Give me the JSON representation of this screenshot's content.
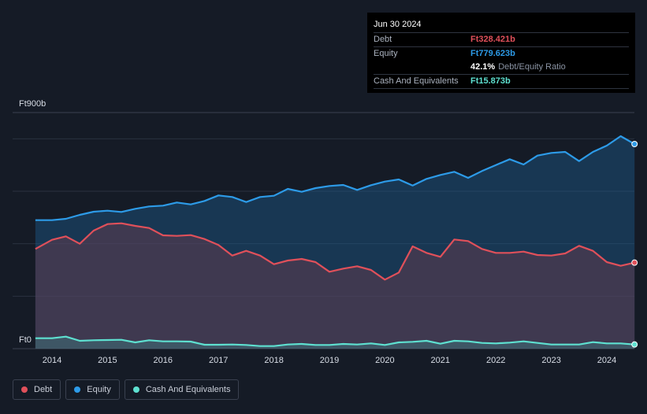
{
  "chart_data": {
    "type": "area",
    "currency_prefix": "Ft",
    "y_unit": "b",
    "ylim": [
      0,
      900
    ],
    "y_tick_labels": [
      "Ft0",
      "Ft900b"
    ],
    "x_tick_labels": [
      "2014",
      "2015",
      "2016",
      "2017",
      "2018",
      "2019",
      "2020",
      "2021",
      "2022",
      "2023",
      "2024"
    ],
    "xlim": [
      2013.7,
      2024.5
    ],
    "series": [
      {
        "name": "Equity",
        "color": "#2d9be8",
        "points": [
          [
            2013.7,
            490
          ],
          [
            2014.0,
            490
          ],
          [
            2014.25,
            495
          ],
          [
            2014.5,
            510
          ],
          [
            2014.75,
            522
          ],
          [
            2015.0,
            526
          ],
          [
            2015.25,
            521
          ],
          [
            2015.5,
            533
          ],
          [
            2015.75,
            542
          ],
          [
            2016.0,
            545
          ],
          [
            2016.25,
            557
          ],
          [
            2016.5,
            550
          ],
          [
            2016.75,
            563
          ],
          [
            2017.0,
            584
          ],
          [
            2017.25,
            578
          ],
          [
            2017.5,
            559
          ],
          [
            2017.75,
            578
          ],
          [
            2018.0,
            583
          ],
          [
            2018.25,
            609
          ],
          [
            2018.5,
            598
          ],
          [
            2018.75,
            612
          ],
          [
            2019.0,
            620
          ],
          [
            2019.25,
            624
          ],
          [
            2019.5,
            605
          ],
          [
            2019.75,
            623
          ],
          [
            2020.0,
            637
          ],
          [
            2020.25,
            645
          ],
          [
            2020.5,
            622
          ],
          [
            2020.75,
            647
          ],
          [
            2021.0,
            662
          ],
          [
            2021.25,
            674
          ],
          [
            2021.5,
            651
          ],
          [
            2021.75,
            677
          ],
          [
            2022.0,
            700
          ],
          [
            2022.25,
            722
          ],
          [
            2022.5,
            702
          ],
          [
            2022.75,
            736
          ],
          [
            2023.0,
            746
          ],
          [
            2023.25,
            750
          ],
          [
            2023.5,
            715
          ],
          [
            2023.75,
            750
          ],
          [
            2024.0,
            774
          ],
          [
            2024.25,
            810
          ],
          [
            2024.5,
            780
          ]
        ]
      },
      {
        "name": "Debt",
        "color": "#e0505a",
        "points": [
          [
            2013.7,
            380
          ],
          [
            2014.0,
            415
          ],
          [
            2014.25,
            428
          ],
          [
            2014.5,
            400
          ],
          [
            2014.75,
            450
          ],
          [
            2015.0,
            475
          ],
          [
            2015.25,
            478
          ],
          [
            2015.5,
            468
          ],
          [
            2015.75,
            460
          ],
          [
            2016.0,
            432
          ],
          [
            2016.25,
            430
          ],
          [
            2016.5,
            433
          ],
          [
            2016.75,
            418
          ],
          [
            2017.0,
            395
          ],
          [
            2017.25,
            355
          ],
          [
            2017.5,
            373
          ],
          [
            2017.75,
            355
          ],
          [
            2018.0,
            322
          ],
          [
            2018.25,
            336
          ],
          [
            2018.5,
            342
          ],
          [
            2018.75,
            330
          ],
          [
            2019.0,
            293
          ],
          [
            2019.25,
            305
          ],
          [
            2019.5,
            314
          ],
          [
            2019.75,
            300
          ],
          [
            2020.0,
            263
          ],
          [
            2020.25,
            290
          ],
          [
            2020.5,
            390
          ],
          [
            2020.75,
            365
          ],
          [
            2021.0,
            350
          ],
          [
            2021.25,
            416
          ],
          [
            2021.5,
            410
          ],
          [
            2021.75,
            380
          ],
          [
            2022.0,
            365
          ],
          [
            2022.25,
            365
          ],
          [
            2022.5,
            370
          ],
          [
            2022.75,
            357
          ],
          [
            2023.0,
            355
          ],
          [
            2023.25,
            363
          ],
          [
            2023.5,
            392
          ],
          [
            2023.75,
            373
          ],
          [
            2024.0,
            330
          ],
          [
            2024.25,
            316
          ],
          [
            2024.5,
            328
          ]
        ]
      },
      {
        "name": "Cash And Equivalents",
        "color": "#5ee0d0",
        "points": [
          [
            2013.7,
            40
          ],
          [
            2014.0,
            40
          ],
          [
            2014.25,
            46
          ],
          [
            2014.5,
            30
          ],
          [
            2014.75,
            32
          ],
          [
            2015.0,
            33
          ],
          [
            2015.25,
            34
          ],
          [
            2015.5,
            24
          ],
          [
            2015.75,
            32
          ],
          [
            2016.0,
            28
          ],
          [
            2016.25,
            28
          ],
          [
            2016.5,
            27
          ],
          [
            2016.75,
            15
          ],
          [
            2017.0,
            15
          ],
          [
            2017.25,
            16
          ],
          [
            2017.5,
            14
          ],
          [
            2017.75,
            10
          ],
          [
            2018.0,
            10
          ],
          [
            2018.25,
            16
          ],
          [
            2018.5,
            18
          ],
          [
            2018.75,
            14
          ],
          [
            2019.0,
            14
          ],
          [
            2019.25,
            18
          ],
          [
            2019.5,
            16
          ],
          [
            2019.75,
            20
          ],
          [
            2020.0,
            14
          ],
          [
            2020.25,
            24
          ],
          [
            2020.5,
            26
          ],
          [
            2020.75,
            30
          ],
          [
            2021.0,
            19
          ],
          [
            2021.25,
            30
          ],
          [
            2021.5,
            28
          ],
          [
            2021.75,
            22
          ],
          [
            2022.0,
            20
          ],
          [
            2022.25,
            23
          ],
          [
            2022.5,
            28
          ],
          [
            2022.75,
            22
          ],
          [
            2023.0,
            16
          ],
          [
            2023.25,
            16
          ],
          [
            2023.5,
            16
          ],
          [
            2023.75,
            25
          ],
          [
            2024.0,
            20
          ],
          [
            2024.25,
            20
          ],
          [
            2024.5,
            16
          ]
        ]
      }
    ],
    "legend": [
      "Debt",
      "Equity",
      "Cash And Equivalents"
    ],
    "grid": true
  },
  "tooltip": {
    "date": "Jun 30 2024",
    "debt_label": "Debt",
    "debt_value": "Ft328.421b",
    "equity_label": "Equity",
    "equity_value": "Ft779.623b",
    "ratio_value": "42.1%",
    "ratio_label": "Debt/Equity Ratio",
    "cash_label": "Cash And Equivalents",
    "cash_value": "Ft15.873b"
  },
  "legend_labels": {
    "debt": "Debt",
    "equity": "Equity",
    "cash": "Cash And Equivalents"
  },
  "colors": {
    "debt": "#e0505a",
    "equity": "#2d9be8",
    "cash": "#5ee0d0"
  }
}
